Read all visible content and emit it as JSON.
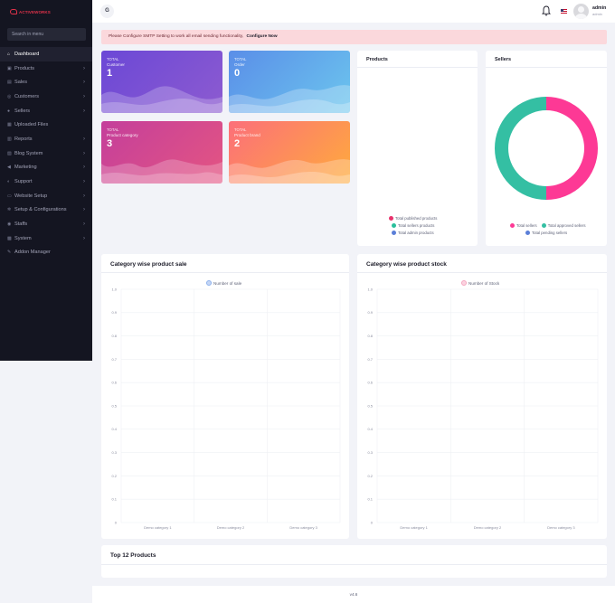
{
  "brand": {
    "name": "ACTIVEWORKS"
  },
  "sidebar": {
    "search_placeholder": "Search in menu",
    "items": [
      {
        "label": "Dashboard",
        "icon": "home-icon",
        "glyph": "⌂",
        "arrow": false,
        "active": true
      },
      {
        "label": "Products",
        "icon": "bag-icon",
        "glyph": "▣",
        "arrow": true
      },
      {
        "label": "Sales",
        "icon": "cart-icon",
        "glyph": "▤",
        "arrow": true
      },
      {
        "label": "Customers",
        "icon": "users-icon",
        "glyph": "◎",
        "arrow": true
      },
      {
        "label": "Sellers",
        "icon": "user-icon",
        "glyph": "●",
        "arrow": true
      },
      {
        "label": "Uploaded Files",
        "icon": "folder-icon",
        "glyph": "▦",
        "arrow": false
      },
      {
        "label": "Reports",
        "icon": "chart-icon",
        "glyph": "▥",
        "arrow": true
      },
      {
        "label": "Blog System",
        "icon": "blog-icon",
        "glyph": "▧",
        "arrow": true
      },
      {
        "label": "Marketing",
        "icon": "megaphone-icon",
        "glyph": "◀",
        "arrow": true
      },
      {
        "label": "Support",
        "icon": "support-icon",
        "glyph": "◐",
        "arrow": true
      },
      {
        "label": "Website Setup",
        "icon": "desktop-icon",
        "glyph": "▭",
        "arrow": true
      },
      {
        "label": "Setup & Configurations",
        "icon": "gear-icon",
        "glyph": "✲",
        "arrow": true
      },
      {
        "label": "Staffs",
        "icon": "staff-icon",
        "glyph": "◉",
        "arrow": true
      },
      {
        "label": "System",
        "icon": "server-icon",
        "glyph": "▩",
        "arrow": true
      },
      {
        "label": "Addon Manager",
        "icon": "wrench-icon",
        "glyph": "✎",
        "arrow": false
      }
    ]
  },
  "topbar": {
    "collapse_label": "G",
    "user": {
      "name": "admin",
      "role": "admin"
    }
  },
  "alert": {
    "text": "Please Configure SMTP Setting to work all email sending functionality,",
    "link": "Configure Now"
  },
  "stats": [
    {
      "label1": "TOTAL",
      "label2": "Customer",
      "value": "1"
    },
    {
      "label1": "TOTAL",
      "label2": "Order",
      "value": "0"
    },
    {
      "label1": "TOTAL",
      "label2": "Product category",
      "value": "3"
    },
    {
      "label1": "TOTAL",
      "label2": "Product brand",
      "value": "2"
    }
  ],
  "products_panel": {
    "title": "Products",
    "legend": [
      {
        "label": "Total published products",
        "color": "#e8336c"
      },
      {
        "label": "Total sellers products",
        "color": "#2bbf9c"
      },
      {
        "label": "Total admin products",
        "color": "#5b7fd8"
      }
    ]
  },
  "sellers_panel": {
    "title": "Sellers",
    "legend": [
      {
        "label": "Total sellers",
        "color": "#fd3995"
      },
      {
        "label": "Total approved sellers",
        "color": "#34bfa3"
      },
      {
        "label": "Total pending sellers",
        "color": "#5b7fd8"
      }
    ],
    "chart_data": {
      "type": "pie",
      "labels": [
        "Total sellers",
        "Total approved sellers",
        "Total pending sellers"
      ],
      "values": [
        1,
        1,
        0
      ],
      "colors": [
        "#fd3995",
        "#34bfa3",
        "#5b7fd8"
      ]
    }
  },
  "category_sale": {
    "title": "Category wise product sale",
    "legend": "Number of sale",
    "legend_color": "#8cb0ec",
    "chart_data": {
      "type": "bar",
      "categories": [
        "Demo category 1",
        "Demo category 2",
        "Demo category 3"
      ],
      "series": [
        {
          "name": "Number of sale",
          "values": [
            0,
            0,
            0
          ]
        }
      ],
      "ylim": [
        0,
        1.0
      ],
      "yticks": [
        "1.0",
        "0.9",
        "0.8",
        "0.7",
        "0.6",
        "0.5",
        "0.4",
        "0.3",
        "0.2",
        "0.1",
        "0"
      ]
    }
  },
  "category_stock": {
    "title": "Category wise product stock",
    "legend": "Number of Stock",
    "legend_color": "#f4a6c0",
    "chart_data": {
      "type": "bar",
      "categories": [
        "Demo category 1",
        "Demo category 2",
        "Demo category 3"
      ],
      "series": [
        {
          "name": "Number of Stock",
          "values": [
            0,
            0,
            0
          ]
        }
      ],
      "ylim": [
        0,
        1.0
      ],
      "yticks": [
        "1.0",
        "0.9",
        "0.8",
        "0.7",
        "0.6",
        "0.5",
        "0.4",
        "0.3",
        "0.2",
        "0.1",
        "0"
      ]
    }
  },
  "top_products": {
    "title": "Top 12 Products"
  },
  "footer": {
    "version": "v4.6"
  }
}
